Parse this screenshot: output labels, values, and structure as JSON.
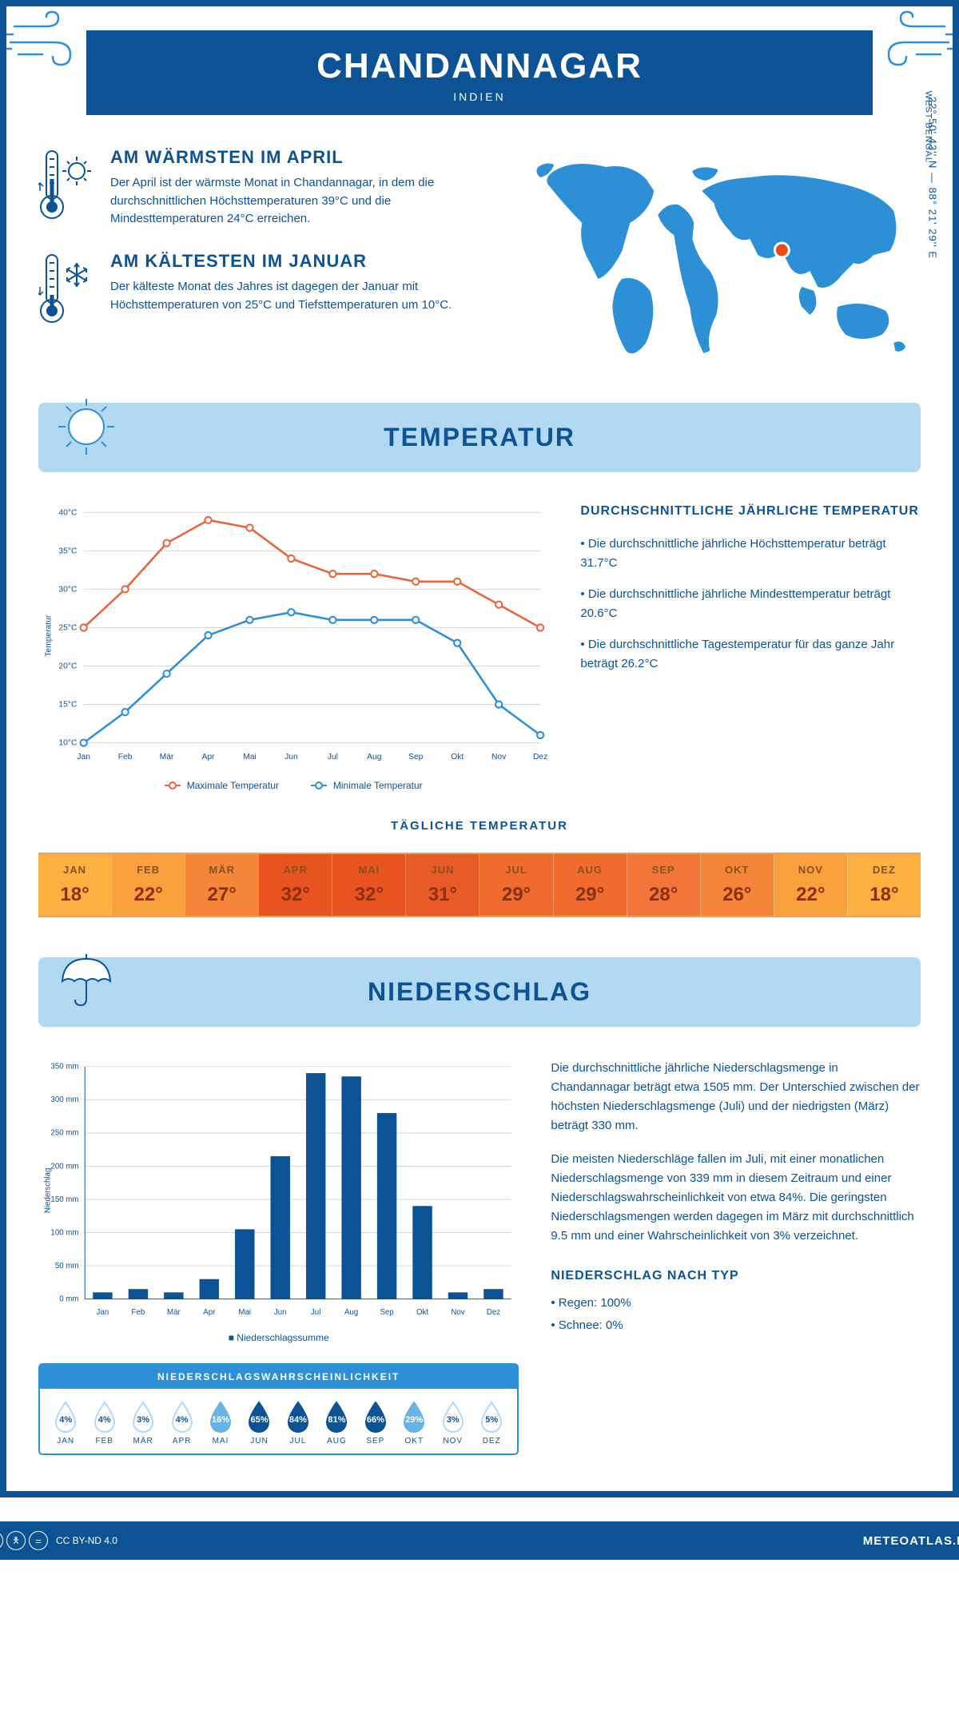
{
  "header": {
    "city": "CHANDANNAGAR",
    "country": "INDIEN"
  },
  "location": {
    "coords": "22° 50' 43'' N — 88° 21' 29'' E",
    "region": "WEST BENGAL",
    "marker_xy": [
      0.66,
      0.46
    ]
  },
  "colors": {
    "primary": "#0b5394",
    "light_blue": "#b3d9f2",
    "accent_blue": "#2d8fd5",
    "orange": "#e8663c",
    "map_fill": "#2d8fd5",
    "marker": "#e84c1a"
  },
  "facts": {
    "warm": {
      "title": "AM WÄRMSTEN IM APRIL",
      "text": "Der April ist der wärmste Monat in Chandannagar, in dem die durchschnittlichen Höchsttemperaturen 39°C und die Mindesttemperaturen 24°C erreichen."
    },
    "cold": {
      "title": "AM KÄLTESTEN IM JANUAR",
      "text": "Der kälteste Monat des Jahres ist dagegen der Januar mit Höchsttemperaturen von 25°C und Tiefsttemperaturen um 10°C."
    }
  },
  "months": [
    "Jan",
    "Feb",
    "Mär",
    "Apr",
    "Mai",
    "Jun",
    "Jul",
    "Aug",
    "Sep",
    "Okt",
    "Nov",
    "Dez"
  ],
  "months_upper": [
    "JAN",
    "FEB",
    "MÄR",
    "APR",
    "MAI",
    "JUN",
    "JUL",
    "AUG",
    "SEP",
    "OKT",
    "NOV",
    "DEZ"
  ],
  "temp_section": {
    "title": "TEMPERATUR",
    "chart": {
      "ylabel": "Temperatur",
      "ymin": 10,
      "ymax": 40,
      "yticks": [
        "10°C",
        "15°C",
        "20°C",
        "25°C",
        "30°C",
        "35°C",
        "40°C"
      ],
      "tmax": [
        25,
        30,
        36,
        39,
        38,
        34,
        32,
        32,
        31,
        31,
        28,
        25
      ],
      "tmin": [
        10,
        14,
        19,
        24,
        26,
        27,
        26,
        26,
        26,
        23,
        15,
        11
      ],
      "max_label": "Maximale Temperatur",
      "min_label": "Minimale Temperatur",
      "max_color": "#e8663c",
      "min_color": "#2d8fd5",
      "grid_color": "#ccd9e5"
    },
    "annual": {
      "title": "DURCHSCHNITTLICHE JÄHRLICHE TEMPERATUR",
      "bullets": [
        "• Die durchschnittliche jährliche Höchsttemperatur beträgt 31.7°C",
        "• Die durchschnittliche jährliche Mindesttemperatur beträgt 20.6°C",
        "• Die durchschnittliche Tagestemperatur für das ganze Jahr beträgt 26.2°C"
      ]
    },
    "daily": {
      "title": "TÄGLICHE TEMPERATUR",
      "values": [
        "18°",
        "22°",
        "27°",
        "32°",
        "32°",
        "31°",
        "29°",
        "29°",
        "28°",
        "26°",
        "22°",
        "18°"
      ],
      "bg_colors": [
        "#fbb040",
        "#f9a03c",
        "#f58538",
        "#e8531f",
        "#e8531f",
        "#e85b27",
        "#f16a2e",
        "#f16a2e",
        "#f3753a",
        "#f58538",
        "#f9a03c",
        "#fbb040"
      ]
    }
  },
  "precip_section": {
    "title": "NIEDERSCHLAG",
    "chart": {
      "ylabel": "Niederschlag",
      "ymin": 0,
      "ymax": 350,
      "yticks": [
        "0 mm",
        "50 mm",
        "100 mm",
        "150 mm",
        "200 mm",
        "250 mm",
        "300 mm",
        "350 mm"
      ],
      "values": [
        10,
        15,
        10,
        30,
        105,
        215,
        340,
        335,
        280,
        140,
        10,
        15
      ],
      "bar_color": "#0b5394",
      "grid_color": "#ccd9e5",
      "legend": "Niederschlagssumme"
    },
    "text": {
      "p1": "Die durchschnittliche jährliche Niederschlagsmenge in Chandannagar beträgt etwa 1505 mm. Der Unterschied zwischen der höchsten Niederschlagsmenge (Juli) und der niedrigsten (März) beträgt 330 mm.",
      "p2": "Die meisten Niederschläge fallen im Juli, mit einer monatlichen Niederschlagsmenge von 339 mm in diesem Zeitraum und einer Niederschlagswahrscheinlichkeit von etwa 84%. Die geringsten Niederschlagsmengen werden dagegen im März mit durchschnittlich 9.5 mm und einer Wahrscheinlichkeit von 3% verzeichnet.",
      "type_title": "NIEDERSCHLAG NACH TYP",
      "type_bullets": [
        "• Regen: 100%",
        "• Schnee: 0%"
      ]
    },
    "prob": {
      "title": "NIEDERSCHLAGSWAHRSCHEINLICHKEIT",
      "values": [
        "4%",
        "4%",
        "3%",
        "4%",
        "16%",
        "65%",
        "84%",
        "81%",
        "66%",
        "29%",
        "3%",
        "5%"
      ],
      "filled": [
        false,
        false,
        false,
        false,
        true,
        true,
        true,
        true,
        true,
        true,
        false,
        false
      ],
      "fill_color": "#0b5394",
      "mid_color": "#67b4e4",
      "outline_color": "#b3d9f2"
    }
  },
  "footer": {
    "license": "CC BY-ND 4.0",
    "brand": "METEOATLAS.DE"
  }
}
